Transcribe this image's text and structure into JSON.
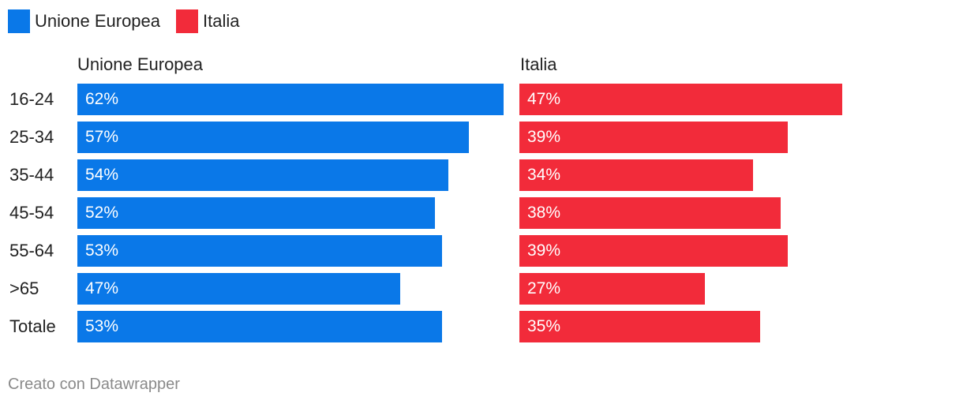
{
  "legend": [
    {
      "label": "Unione Europea",
      "color": "#0a78e8"
    },
    {
      "label": "Italia",
      "color": "#f22b3a"
    }
  ],
  "footer": "Creato con Datawrapper",
  "chart_data": {
    "type": "bar",
    "orientation": "horizontal",
    "categories": [
      "16-24",
      "25-34",
      "35-44",
      "45-54",
      "55-64",
      ">65",
      "Totale"
    ],
    "series": [
      {
        "name": "Unione Europea",
        "color": "#0a78e8",
        "values": [
          62,
          57,
          54,
          52,
          53,
          47,
          53
        ],
        "labels": [
          "62%",
          "57%",
          "54%",
          "52%",
          "53%",
          "47%",
          "53%"
        ]
      },
      {
        "name": "Italia",
        "color": "#f22b3a",
        "values": [
          47,
          39,
          34,
          38,
          39,
          27,
          35
        ],
        "labels": [
          "47%",
          "39%",
          "34%",
          "38%",
          "39%",
          "27%",
          "35%"
        ]
      }
    ],
    "xlim": [
      0,
      62
    ],
    "unit": "%",
    "legend_position": "top-left",
    "grid": false
  }
}
